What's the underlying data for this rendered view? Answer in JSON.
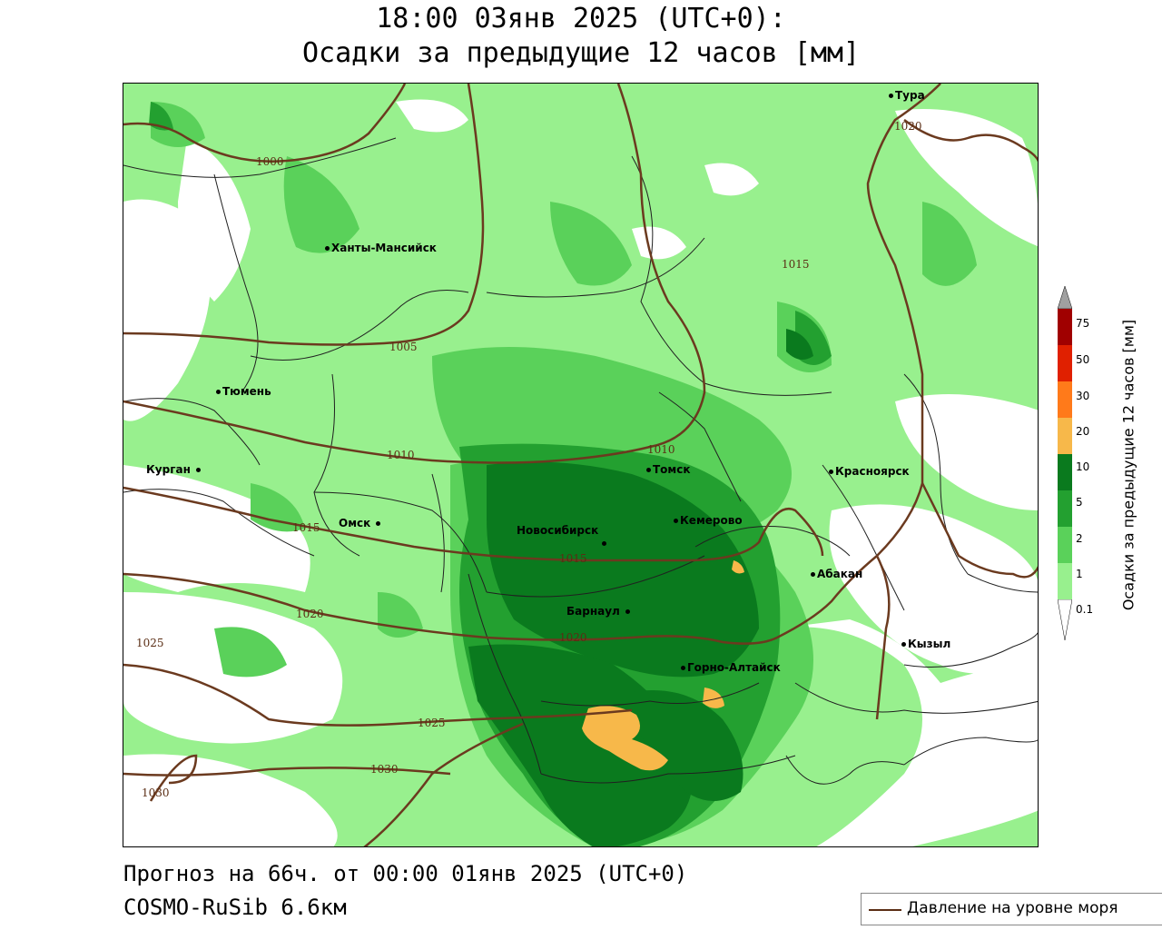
{
  "header": {
    "title_line1": "18:00 03янв 2025 (UTC+0):",
    "title_line2": "Осадки за предыдущие 12 часов [мм]"
  },
  "footer": {
    "forecast": "Прогноз на 66ч. от 00:00 01янв 2025 (UTC+0)",
    "model": "COSMO-RuSib 6.6км"
  },
  "legend": {
    "pressure_label": "Давление на уровне моря"
  },
  "colorbar": {
    "title": "Осадки за предыдущие 12 часов [мм]",
    "ticks": [
      "75",
      "50",
      "30",
      "20",
      "10",
      "5",
      "2",
      "1",
      "0.1"
    ],
    "colors": {
      "above_75": "#a0a0a0",
      "r50_75": "#a00000",
      "r30_50": "#e02000",
      "r20_30": "#ff7a1a",
      "r10_20": "#f7b84a",
      "r5_10": "#0a7a1e",
      "r2_5": "#23a030",
      "r1_2": "#5ad15a",
      "r01_1": "#98f08e"
    }
  },
  "cities": [
    {
      "name": "Тура"
    },
    {
      "name": "Ханты-Мансийск"
    },
    {
      "name": "Тюмень"
    },
    {
      "name": "Курган"
    },
    {
      "name": "Омск"
    },
    {
      "name": "Томск"
    },
    {
      "name": "Новосибирск"
    },
    {
      "name": "Кемерово"
    },
    {
      "name": "Барнаул"
    },
    {
      "name": "Красноярск"
    },
    {
      "name": "Абакан"
    },
    {
      "name": "Горно-Алтайск"
    },
    {
      "name": "Кызыл"
    }
  ],
  "isobar_labels": [
    "1000",
    "1005",
    "1010",
    "1010",
    "1015",
    "1015",
    "1015",
    "1020",
    "1020",
    "1020",
    "1025",
    "1025",
    "1030",
    "1030"
  ]
}
